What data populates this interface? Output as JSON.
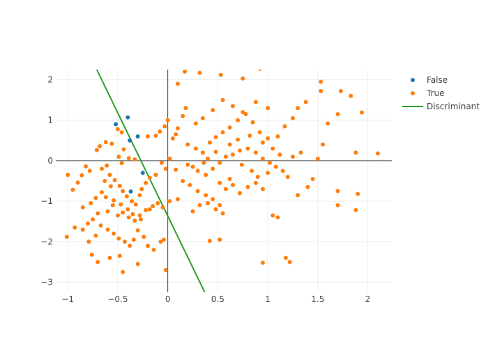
{
  "chart_data": {
    "type": "scatter",
    "title": "",
    "xlabel": "",
    "ylabel": "",
    "xlim": [
      -1.12,
      2.24
    ],
    "ylim": [
      -3.25,
      2.25
    ],
    "xticks": [
      -1,
      -0.5,
      0,
      0.5,
      1,
      1.5,
      2
    ],
    "xtick_labels": [
      "−1",
      "−0.5",
      "0",
      "0.5",
      "1",
      "1.5",
      "2"
    ],
    "yticks": [
      -3,
      -2,
      -1,
      0,
      1,
      2
    ],
    "ytick_labels": [
      "−3",
      "−2",
      "−1",
      "0",
      "1",
      "2"
    ],
    "grid": true,
    "zero_lines": true,
    "legend_position": "top-right",
    "series": [
      {
        "name": "False",
        "type": "markers",
        "color": "#1f77b4",
        "points": [
          [
            -0.52,
            0.9
          ],
          [
            -0.4,
            1.07
          ],
          [
            -0.38,
            0.5
          ],
          [
            -0.3,
            0.6
          ],
          [
            -0.25,
            -0.3
          ],
          [
            -0.37,
            -0.76
          ]
        ]
      },
      {
        "name": "True",
        "type": "markers",
        "color": "#ff7f0e",
        "points": [
          [
            -0.68,
            0.36
          ],
          [
            -0.71,
            0.26
          ],
          [
            -0.62,
            0.46
          ],
          [
            -0.56,
            0.42
          ],
          [
            -0.49,
            0.1
          ],
          [
            -0.44,
            0.28
          ],
          [
            -0.46,
            -0.06
          ],
          [
            -0.39,
            0.06
          ],
          [
            -0.33,
            0.03
          ],
          [
            -0.61,
            -0.12
          ],
          [
            -0.66,
            -0.2
          ],
          [
            -0.78,
            -0.25
          ],
          [
            -0.82,
            -0.14
          ],
          [
            -0.86,
            -0.36
          ],
          [
            -0.9,
            -0.54
          ],
          [
            -0.95,
            -0.72
          ],
          [
            -1.0,
            -0.35
          ],
          [
            -0.58,
            -0.35
          ],
          [
            -0.53,
            -0.48
          ],
          [
            -0.48,
            -0.62
          ],
          [
            -0.45,
            -0.75
          ],
          [
            -0.41,
            -0.88
          ],
          [
            -0.36,
            -1.0
          ],
          [
            -0.32,
            -1.08
          ],
          [
            -0.55,
            -1.1
          ],
          [
            -0.6,
            -1.25
          ],
          [
            -0.5,
            -1.35
          ],
          [
            -0.45,
            -1.28
          ],
          [
            -0.39,
            -1.4
          ],
          [
            -0.33,
            -1.48
          ],
          [
            -0.28,
            -1.35
          ],
          [
            -0.7,
            -1.3
          ],
          [
            -0.75,
            -1.45
          ],
          [
            -0.8,
            -1.55
          ],
          [
            -0.67,
            -1.6
          ],
          [
            -0.6,
            -1.7
          ],
          [
            -0.54,
            -1.8
          ],
          [
            -0.49,
            -1.92
          ],
          [
            -0.43,
            -2.0
          ],
          [
            -0.38,
            -2.1
          ],
          [
            -0.34,
            -1.95
          ],
          [
            -0.3,
            -1.72
          ],
          [
            -0.24,
            -1.88
          ],
          [
            -0.2,
            -2.1
          ],
          [
            -0.14,
            -2.2
          ],
          [
            -0.07,
            -2.0
          ],
          [
            -0.04,
            -1.95
          ],
          [
            -0.72,
            -1.85
          ],
          [
            -0.79,
            -2.0
          ],
          [
            -0.85,
            -1.7
          ],
          [
            -0.93,
            -1.65
          ],
          [
            -1.01,
            -1.88
          ],
          [
            -0.76,
            -2.32
          ],
          [
            -0.7,
            -2.5
          ],
          [
            -0.58,
            -2.4
          ],
          [
            -0.48,
            -2.35
          ],
          [
            -0.3,
            -2.55
          ],
          [
            -0.45,
            -2.75
          ],
          [
            -0.02,
            -2.7
          ],
          [
            -0.63,
            -0.5
          ],
          [
            -0.57,
            -0.63
          ],
          [
            -0.66,
            -0.78
          ],
          [
            -0.72,
            -0.92
          ],
          [
            -0.77,
            -1.05
          ],
          [
            -0.85,
            -1.15
          ],
          [
            -0.62,
            -0.9
          ],
          [
            -0.54,
            -0.98
          ],
          [
            -0.47,
            -1.08
          ],
          [
            -0.4,
            -1.2
          ],
          [
            -0.35,
            -1.32
          ],
          [
            -0.27,
            -1.45
          ],
          [
            -0.22,
            -1.22
          ],
          [
            -0.18,
            -1.2
          ],
          [
            -0.15,
            -1.12
          ],
          [
            -0.1,
            -1.05
          ],
          [
            -0.05,
            -1.15
          ],
          [
            -0.28,
            -0.85
          ],
          [
            -0.26,
            -0.7
          ],
          [
            -0.22,
            -0.55
          ],
          [
            -0.18,
            -0.42
          ],
          [
            -0.12,
            -0.35
          ],
          [
            -0.06,
            -0.05
          ],
          [
            -0.12,
            0.62
          ],
          [
            -0.08,
            0.72
          ],
          [
            -0.03,
            0.85
          ],
          [
            0.0,
            1.0
          ],
          [
            0.02,
            0.05
          ],
          [
            -0.02,
            -0.2
          ],
          [
            0.08,
            -0.22
          ],
          [
            -0.5,
            0.78
          ],
          [
            -0.46,
            0.7
          ],
          [
            -0.2,
            0.6
          ],
          [
            0.05,
            0.55
          ],
          [
            0.1,
            0.8
          ],
          [
            0.15,
            1.1
          ],
          [
            0.18,
            1.3
          ],
          [
            0.1,
            1.9
          ],
          [
            0.17,
            2.2
          ],
          [
            0.32,
            2.17
          ],
          [
            0.53,
            2.12
          ],
          [
            0.75,
            2.03
          ],
          [
            0.92,
            2.27
          ],
          [
            0.08,
            0.65
          ],
          [
            0.2,
            0.4
          ],
          [
            0.28,
            0.3
          ],
          [
            0.35,
            0.2
          ],
          [
            0.42,
            0.45
          ],
          [
            0.48,
            0.58
          ],
          [
            0.55,
            0.7
          ],
          [
            0.62,
            0.82
          ],
          [
            0.7,
            1.0
          ],
          [
            0.78,
            1.15
          ],
          [
            0.85,
            0.95
          ],
          [
            0.92,
            0.7
          ],
          [
            1.0,
            0.55
          ],
          [
            1.1,
            0.6
          ],
          [
            1.17,
            0.85
          ],
          [
            1.25,
            1.05
          ],
          [
            1.3,
            1.3
          ],
          [
            1.38,
            1.45
          ],
          [
            0.2,
            -0.1
          ],
          [
            0.25,
            -0.15
          ],
          [
            0.3,
            -0.25
          ],
          [
            0.38,
            -0.35
          ],
          [
            0.45,
            -0.2
          ],
          [
            0.52,
            -0.05
          ],
          [
            0.58,
            0.1
          ],
          [
            0.65,
            0.15
          ],
          [
            0.72,
            0.25
          ],
          [
            0.8,
            0.3
          ],
          [
            0.88,
            0.2
          ],
          [
            0.95,
            0.05
          ],
          [
            1.02,
            -0.05
          ],
          [
            1.08,
            -0.15
          ],
          [
            1.15,
            -0.25
          ],
          [
            1.2,
            -0.4
          ],
          [
            1.25,
            0.1
          ],
          [
            1.33,
            0.2
          ],
          [
            0.15,
            -0.5
          ],
          [
            0.22,
            -0.6
          ],
          [
            0.3,
            -0.75
          ],
          [
            0.38,
            -0.85
          ],
          [
            0.45,
            -0.95
          ],
          [
            0.52,
            -1.1
          ],
          [
            0.58,
            -0.7
          ],
          [
            0.65,
            -0.6
          ],
          [
            0.72,
            -0.8
          ],
          [
            0.8,
            -0.65
          ],
          [
            0.88,
            -0.55
          ],
          [
            0.95,
            -0.7
          ],
          [
            1.05,
            -1.35
          ],
          [
            1.1,
            -1.4
          ],
          [
            1.18,
            -2.4
          ],
          [
            1.22,
            -2.5
          ],
          [
            0.95,
            -2.52
          ],
          [
            0.25,
            -1.25
          ],
          [
            0.32,
            -1.1
          ],
          [
            0.4,
            -1.05
          ],
          [
            0.48,
            -1.2
          ],
          [
            0.55,
            -1.3
          ],
          [
            0.42,
            -1.98
          ],
          [
            0.52,
            -1.95
          ],
          [
            0.1,
            -0.95
          ],
          [
            0.02,
            -1.0
          ],
          [
            1.3,
            -0.85
          ],
          [
            1.4,
            -0.65
          ],
          [
            1.45,
            -0.45
          ],
          [
            1.5,
            0.05
          ],
          [
            1.55,
            0.4
          ],
          [
            1.6,
            0.92
          ],
          [
            1.7,
            1.15
          ],
          [
            1.73,
            1.72
          ],
          [
            1.83,
            1.6
          ],
          [
            1.94,
            1.19
          ],
          [
            1.53,
            1.95
          ],
          [
            1.53,
            1.72
          ],
          [
            1.88,
            0.2
          ],
          [
            2.1,
            0.18
          ],
          [
            1.7,
            -0.75
          ],
          [
            1.7,
            -1.1
          ],
          [
            1.9,
            -0.82
          ],
          [
            1.88,
            -1.22
          ],
          [
            1.0,
            1.3
          ],
          [
            0.88,
            1.45
          ],
          [
            0.75,
            1.2
          ],
          [
            0.65,
            1.35
          ],
          [
            0.55,
            1.5
          ],
          [
            0.45,
            1.25
          ],
          [
            0.35,
            1.05
          ],
          [
            0.28,
            0.92
          ],
          [
            0.62,
            0.4
          ],
          [
            0.7,
            0.52
          ],
          [
            0.82,
            0.62
          ],
          [
            0.95,
            0.45
          ],
          [
            1.05,
            0.3
          ],
          [
            1.12,
            0.15
          ],
          [
            0.4,
            0.05
          ],
          [
            0.48,
            0.22
          ],
          [
            0.36,
            -0.05
          ],
          [
            0.74,
            -0.1
          ],
          [
            0.84,
            -0.25
          ],
          [
            0.9,
            -0.4
          ],
          [
            1.0,
            -0.3
          ],
          [
            0.62,
            -0.45
          ],
          [
            0.52,
            -0.55
          ]
        ]
      },
      {
        "name": "Discriminant",
        "type": "line",
        "color": "#2ca02c",
        "x": [
          -0.71,
          0.37
        ],
        "y": [
          2.25,
          -3.25
        ]
      }
    ]
  }
}
